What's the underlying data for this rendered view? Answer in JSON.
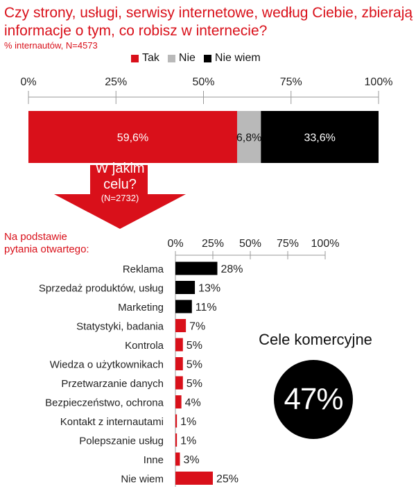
{
  "title": "Czy strony, usługi, serwisy internetowe, według Ciebie, zbierają informacje o tym, co robisz w internecie?",
  "subtitle": "% internautów, N=4573",
  "colors": {
    "tak": "#d9101a",
    "nie": "#b9b9b9",
    "nie_wiem": "#000000",
    "accent": "#d9101a",
    "axis": "#999999"
  },
  "arrow": {
    "line1": "W jakim",
    "line2": "celu?",
    "n": "(N=2732)"
  },
  "note": {
    "line1": "Na podstawie",
    "line2": "pytania otwartego:"
  },
  "highlight": {
    "label": "Cele komercyjne",
    "value": "47%"
  },
  "chart_data": [
    {
      "type": "bar",
      "orientation": "horizontal-stacked",
      "ticks": [
        "0%",
        "25%",
        "50%",
        "75%",
        "100%"
      ],
      "xlim": [
        0,
        100
      ],
      "legend_position": "top-right",
      "series": [
        {
          "name": "Tak",
          "value": 59.6,
          "label": "59,6%",
          "color": "#d9101a"
        },
        {
          "name": "Nie",
          "value": 6.8,
          "label": "6,8%",
          "color": "#b9b9b9"
        },
        {
          "name": "Nie wiem",
          "value": 33.6,
          "label": "33,6%",
          "color": "#000000"
        }
      ]
    },
    {
      "type": "bar",
      "orientation": "horizontal",
      "ticks": [
        "0%",
        "25%",
        "50%",
        "75%",
        "100%"
      ],
      "xlim": [
        0,
        100
      ],
      "categories": [
        "Reklama",
        "Sprzedaż produktów, usług",
        "Marketing",
        "Statystyki, badania",
        "Kontrola",
        "Wiedza o użytkownikach",
        "Przetwarzanie danych",
        "Bezpieczeństwo, ochrona",
        "Kontakt z internautami",
        "Polepszanie usług",
        "Inne",
        "Nie wiem"
      ],
      "values": [
        28,
        13,
        11,
        7,
        5,
        5,
        5,
        4,
        1,
        1,
        3,
        25
      ],
      "labels": [
        "28%",
        "13%",
        "11%",
        "7%",
        "5%",
        "5%",
        "5%",
        "4%",
        "1%",
        "1%",
        "3%",
        "25%"
      ],
      "colors": [
        "#000000",
        "#000000",
        "#000000",
        "#d9101a",
        "#d9101a",
        "#d9101a",
        "#d9101a",
        "#d9101a",
        "#d9101a",
        "#d9101a",
        "#d9101a",
        "#d9101a"
      ]
    }
  ]
}
